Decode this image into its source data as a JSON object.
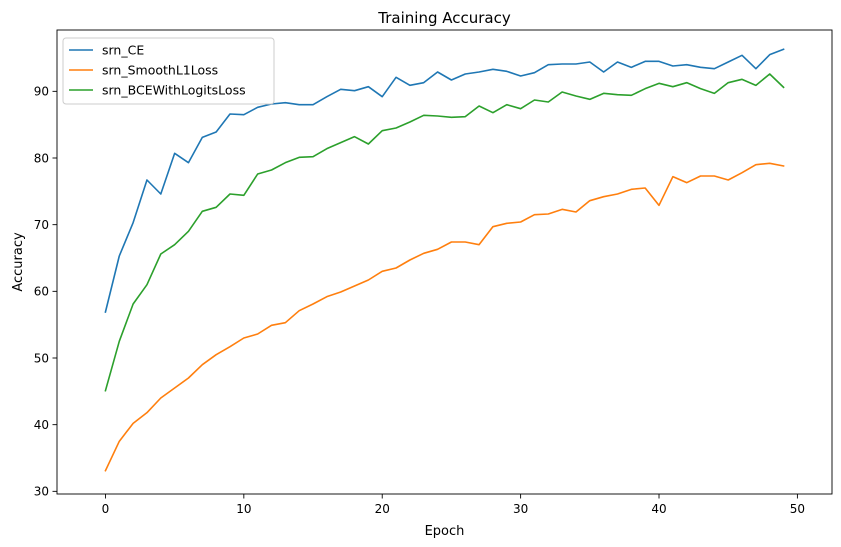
{
  "chart_data": {
    "type": "line",
    "title": "Training Accuracy",
    "xlabel": "Epoch",
    "ylabel": "Accuracy",
    "xlim": [
      -3.5,
      52.5
    ],
    "ylim": [
      29.6,
      99.2
    ],
    "xticks": [
      0,
      10,
      20,
      30,
      40,
      50
    ],
    "yticks": [
      30,
      40,
      50,
      60,
      70,
      80,
      90
    ],
    "grid": false,
    "legend": "top-left",
    "x": [
      0,
      1,
      2,
      3,
      4,
      5,
      6,
      7,
      8,
      9,
      10,
      11,
      12,
      13,
      14,
      15,
      16,
      17,
      18,
      19,
      20,
      21,
      22,
      23,
      24,
      25,
      26,
      27,
      28,
      29,
      30,
      31,
      32,
      33,
      34,
      35,
      36,
      37,
      38,
      39,
      40,
      41,
      42,
      43,
      44,
      45,
      46,
      47,
      48,
      49
    ],
    "series": [
      {
        "name": "srn_CE",
        "color": "#1f77b4",
        "values": [
          56.9,
          65.3,
          70.3,
          76.7,
          74.6,
          80.7,
          79.3,
          83.1,
          83.9,
          86.6,
          86.5,
          87.6,
          88.1,
          88.3,
          88.0,
          88.0,
          89.2,
          90.3,
          90.1,
          90.7,
          89.2,
          92.1,
          90.9,
          91.3,
          92.9,
          91.7,
          92.6,
          92.9,
          93.3,
          93.0,
          92.3,
          92.8,
          94.0,
          94.1,
          94.1,
          94.4,
          92.9,
          94.4,
          93.6,
          94.5,
          94.5,
          93.8,
          94.0,
          93.6,
          93.4,
          94.4,
          95.4,
          93.4,
          95.5,
          96.3
        ]
      },
      {
        "name": "srn_SmoothL1Loss",
        "color": "#ff7f0e",
        "values": [
          33.1,
          37.5,
          40.2,
          41.8,
          44.0,
          45.5,
          47.0,
          49.0,
          50.5,
          51.7,
          53.0,
          53.6,
          54.9,
          55.3,
          57.1,
          58.1,
          59.2,
          59.9,
          60.8,
          61.7,
          63.0,
          63.5,
          64.7,
          65.7,
          66.3,
          67.4,
          67.4,
          67.0,
          69.7,
          70.2,
          70.4,
          71.5,
          71.6,
          72.3,
          71.9,
          73.6,
          74.2,
          74.6,
          75.3,
          75.5,
          72.9,
          77.2,
          76.3,
          77.3,
          77.3,
          76.7,
          77.8,
          79.0,
          79.2,
          78.8
        ]
      },
      {
        "name": "srn_BCEWithLogitsLoss",
        "color": "#2ca02c",
        "values": [
          45.1,
          52.5,
          58.1,
          61.0,
          65.6,
          67.0,
          69.0,
          72.0,
          72.6,
          74.6,
          74.4,
          77.6,
          78.2,
          79.3,
          80.1,
          80.2,
          81.4,
          82.3,
          83.2,
          82.1,
          84.1,
          84.5,
          85.4,
          86.4,
          86.3,
          86.1,
          86.2,
          87.8,
          86.8,
          88.0,
          87.4,
          88.7,
          88.4,
          89.9,
          89.3,
          88.8,
          89.7,
          89.5,
          89.4,
          90.4,
          91.2,
          90.7,
          91.3,
          90.4,
          89.7,
          91.3,
          91.8,
          90.9,
          92.6,
          90.6
        ]
      }
    ]
  }
}
